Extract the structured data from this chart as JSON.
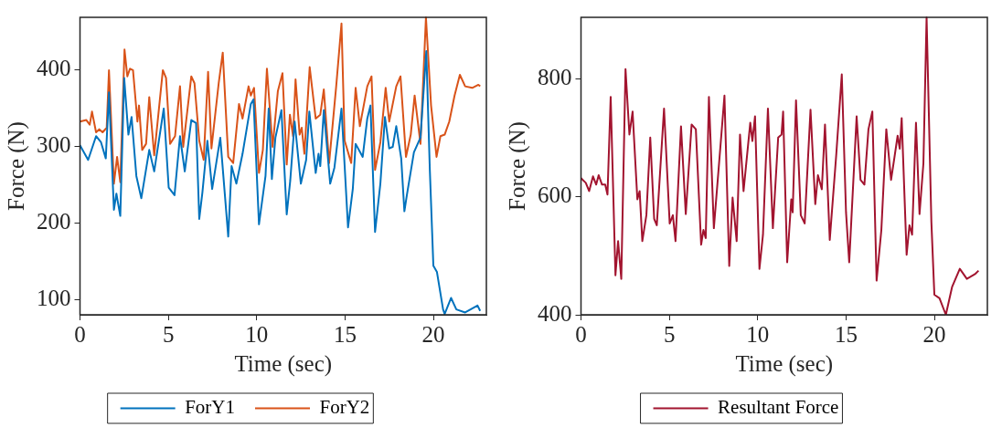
{
  "chart_data": [
    {
      "type": "line",
      "xlabel": "Time (sec)",
      "ylabel": "Force (N)",
      "xlim": [
        0,
        23
      ],
      "xticks": [
        0,
        5,
        10,
        15,
        20
      ],
      "ylim": [
        80,
        468
      ],
      "yticks": [
        100,
        200,
        300,
        400
      ],
      "grid": false,
      "legend": "bottom",
      "marker": "none",
      "line_style": "solid",
      "series": [
        {
          "name": "ForY1",
          "color": "#0072bd",
          "x": [
            0,
            0.46,
            0.91,
            1.19,
            1.46,
            1.64,
            1.92,
            2.06,
            2.28,
            2.5,
            2.74,
            2.92,
            3.19,
            3.47,
            3.92,
            4.2,
            4.74,
            5.02,
            5.35,
            5.66,
            5.93,
            6.3,
            6.57,
            6.75,
            6.93,
            7.21,
            7.48,
            7.94,
            8.39,
            8.58,
            8.85,
            9.2,
            9.67,
            9.82,
            10.13,
            10.5,
            10.68,
            10.86,
            11.06,
            11.4,
            11.7,
            11.9,
            12.15,
            12.5,
            12.8,
            12.98,
            13.34,
            13.5,
            13.6,
            13.8,
            14.16,
            14.4,
            14.8,
            15.17,
            15.44,
            15.6,
            16.0,
            16.26,
            16.44,
            16.7,
            17.0,
            17.26,
            17.5,
            17.7,
            17.9,
            18.18,
            18.36,
            18.5,
            18.9,
            19.27,
            19.6,
            19.8,
            20.0,
            20.2,
            20.55,
            20.64,
            21.0,
            21.3,
            21.8,
            22.5,
            22.65
          ],
          "values": [
            301,
            282,
            313,
            305,
            284,
            370,
            217,
            238,
            209,
            389,
            315,
            338,
            261,
            232,
            295,
            267,
            349,
            246,
            236,
            313,
            267,
            334,
            330,
            205,
            240,
            307,
            244,
            311,
            182,
            274,
            251,
            290,
            355,
            361,
            198,
            261,
            349,
            257,
            311,
            347,
            211,
            255,
            332,
            251,
            282,
            345,
            265,
            290,
            274,
            347,
            251,
            272,
            349,
            194,
            244,
            303,
            286,
            336,
            353,
            188,
            251,
            338,
            297,
            299,
            326,
            284,
            215,
            236,
            292,
            311,
            424,
            269,
            144,
            136,
            87,
            81,
            102,
            87,
            83,
            92,
            85
          ]
        },
        {
          "name": "ForY2",
          "color": "#d95319",
          "x": [
            0,
            0.36,
            0.55,
            0.68,
            0.91,
            1.09,
            1.28,
            1.51,
            1.64,
            1.92,
            2.1,
            2.28,
            2.52,
            2.68,
            2.83,
            3.0,
            3.25,
            3.34,
            3.52,
            3.74,
            3.92,
            4.2,
            4.69,
            4.87,
            5.1,
            5.38,
            5.66,
            5.84,
            6.3,
            6.48,
            6.75,
            7.0,
            7.25,
            7.44,
            7.85,
            8.08,
            8.39,
            8.67,
            9.0,
            9.2,
            9.54,
            9.67,
            9.85,
            10.13,
            10.35,
            10.58,
            10.9,
            11.2,
            11.46,
            11.7,
            11.88,
            12.06,
            12.2,
            12.43,
            12.55,
            12.7,
            13.0,
            13.34,
            13.6,
            13.8,
            14.1,
            14.5,
            14.8,
            14.98,
            15.35,
            15.6,
            15.84,
            16.26,
            16.5,
            16.7,
            17.0,
            17.3,
            17.5,
            17.9,
            18.14,
            18.45,
            18.72,
            18.94,
            19.27,
            19.58,
            19.87,
            20.18,
            20.4,
            20.64,
            20.9,
            21.2,
            21.5,
            21.8,
            22.2,
            22.55,
            22.65
          ],
          "values": [
            332,
            334,
            328,
            345,
            318,
            322,
            318,
            324,
            399,
            251,
            286,
            253,
            426,
            391,
            401,
            399,
            332,
            353,
            295,
            303,
            364,
            288,
            399,
            389,
            303,
            313,
            378,
            299,
            391,
            382,
            307,
            282,
            397,
            297,
            382,
            422,
            286,
            278,
            355,
            336,
            378,
            366,
            376,
            265,
            295,
            401,
            299,
            372,
            395,
            276,
            341,
            313,
            387,
            315,
            324,
            290,
            403,
            336,
            341,
            374,
            278,
            378,
            460,
            307,
            278,
            376,
            326,
            378,
            391,
            269,
            305,
            376,
            332,
            378,
            391,
            286,
            315,
            366,
            303,
            468,
            353,
            286,
            313,
            315,
            332,
            366,
            393,
            378,
            376,
            380,
            378
          ]
        }
      ]
    },
    {
      "type": "line",
      "xlabel": "Time (sec)",
      "ylabel": "Force (N)",
      "xlim": [
        0,
        23
      ],
      "xticks": [
        0,
        5,
        10,
        15,
        20
      ],
      "ylim": [
        400,
        905
      ],
      "yticks": [
        400,
        600,
        800
      ],
      "grid": false,
      "legend": "bottom",
      "marker": "none",
      "line_style": "solid",
      "series": [
        {
          "name": "Resultant Force",
          "color": "#a2142f",
          "x": [
            0,
            0.27,
            0.46,
            0.68,
            0.86,
            1.0,
            1.19,
            1.37,
            1.5,
            1.68,
            1.95,
            2.1,
            2.28,
            2.52,
            2.74,
            2.92,
            3.19,
            3.32,
            3.47,
            3.7,
            3.92,
            4.14,
            4.29,
            4.7,
            5.02,
            5.2,
            5.35,
            5.66,
            5.93,
            6.26,
            6.5,
            6.8,
            6.93,
            7.06,
            7.24,
            7.52,
            7.94,
            8.12,
            8.39,
            8.58,
            8.81,
            9.0,
            9.2,
            9.58,
            9.7,
            9.85,
            10.1,
            10.3,
            10.58,
            10.86,
            11.16,
            11.35,
            11.44,
            11.67,
            11.9,
            11.98,
            12.17,
            12.44,
            12.66,
            12.99,
            13.26,
            13.41,
            13.63,
            13.81,
            14.08,
            14.45,
            14.76,
            15.0,
            15.18,
            15.6,
            15.82,
            16.04,
            16.27,
            16.49,
            16.73,
            17.0,
            17.28,
            17.55,
            17.73,
            17.92,
            18.04,
            18.15,
            18.43,
            18.59,
            18.74,
            18.96,
            19.16,
            19.38,
            19.56,
            19.83,
            20.0,
            20.29,
            20.65,
            21.0,
            21.44,
            21.84,
            22.3,
            22.5
          ],
          "values": [
            632,
            624,
            610,
            635,
            621,
            637,
            621,
            621,
            604,
            770,
            467,
            525,
            461,
            817,
            706,
            745,
            596,
            610,
            525,
            569,
            701,
            563,
            552,
            750,
            555,
            569,
            525,
            720,
            571,
            723,
            715,
            519,
            544,
            530,
            770,
            547,
            704,
            772,
            483,
            599,
            525,
            706,
            610,
            726,
            695,
            737,
            478,
            536,
            750,
            547,
            701,
            706,
            745,
            489,
            596,
            574,
            764,
            569,
            555,
            748,
            588,
            637,
            613,
            723,
            527,
            673,
            808,
            574,
            489,
            737,
            629,
            621,
            715,
            745,
            458,
            544,
            715,
            629,
            665,
            704,
            682,
            734,
            502,
            552,
            536,
            726,
            571,
            657,
            905,
            558,
            434,
            428,
            400,
            447,
            478,
            461,
            469,
            475
          ]
        }
      ]
    }
  ]
}
